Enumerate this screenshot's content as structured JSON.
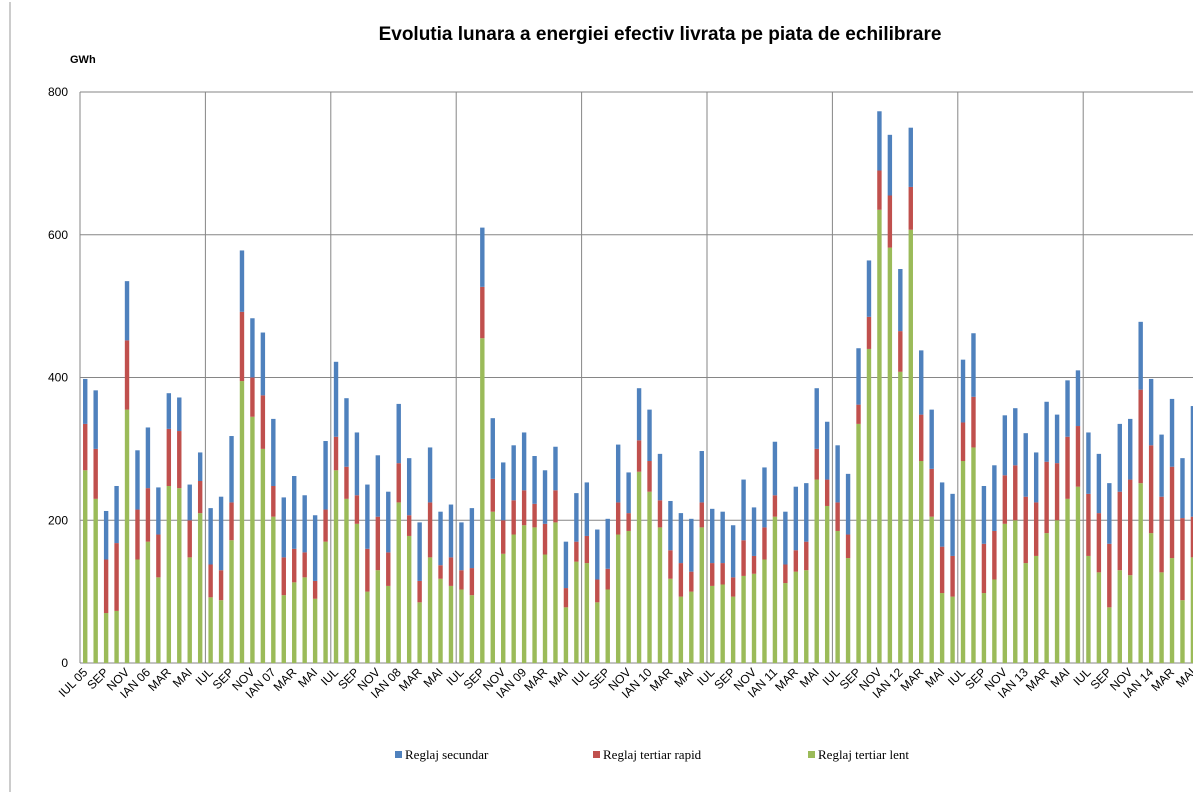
{
  "chart_data": {
    "type": "stacked-bar",
    "title": "Evolutia lunara a energiei efectiv livrata pe piata de echilibrare",
    "y_label": "GWh",
    "categories": [
      "IUL 05",
      null,
      "SEP",
      null,
      "NOV",
      null,
      "IAN 06",
      null,
      "MAR",
      null,
      "MAI",
      null,
      "IUL",
      null,
      "SEP",
      null,
      "NOV",
      null,
      "IAN 07",
      null,
      "MAR",
      null,
      "MAI",
      null,
      "IUL",
      null,
      "SEP",
      null,
      "NOV",
      null,
      "IAN 08",
      null,
      "MAR",
      null,
      "MAI",
      null,
      "IUL",
      null,
      "SEP",
      null,
      "NOV",
      null,
      "IAN 09",
      null,
      "MAR",
      null,
      "MAI",
      null,
      "IUL",
      null,
      "SEP",
      null,
      "NOV",
      null,
      "IAN 10",
      null,
      "MAR",
      null,
      "MAI",
      null,
      "IUL",
      null,
      "SEP",
      null,
      "NOV",
      null,
      "IAN 11",
      null,
      "MAR",
      null,
      "MAI",
      null,
      "IUL",
      null,
      "SEP",
      null,
      "NOV",
      null,
      "IAN 12",
      null,
      "MAR",
      null,
      "MAI",
      null,
      "IUL",
      null,
      "SEP",
      null,
      "NOV",
      null,
      "IAN 13",
      null,
      "MAR",
      null,
      "MAI",
      null,
      "IUL",
      null,
      "SEP",
      null,
      "NOV",
      null,
      "IAN 14",
      null,
      "MAR",
      null,
      "MAI"
    ],
    "series": [
      {
        "name": "Reglaj secundar",
        "color": "#4f81bd",
        "values": [
          63,
          82,
          68,
          80,
          83,
          83,
          85,
          66,
          50,
          47,
          50,
          40,
          79,
          103,
          93,
          86,
          83,
          88,
          94,
          84,
          102,
          80,
          92,
          96,
          105,
          96,
          88,
          90,
          86,
          85,
          83,
          80,
          82,
          77,
          75,
          74,
          67,
          84,
          83,
          85,
          81,
          77,
          81,
          67,
          75,
          61,
          65,
          68,
          75,
          70,
          70,
          81,
          57,
          73,
          72,
          65,
          69,
          70,
          74,
          72,
          76,
          72,
          73,
          85,
          68,
          84,
          75,
          74,
          89,
          82,
          85,
          81,
          80,
          85,
          79,
          79,
          83,
          85,
          87,
          83,
          90,
          83,
          90,
          87,
          88,
          89,
          81,
          92,
          84,
          80,
          89,
          70,
          84,
          68,
          79,
          78,
          86,
          83,
          85,
          95,
          85,
          95,
          93,
          87,
          95,
          84,
          155
        ]
      },
      {
        "name": "Reglaj tertiar rapid",
        "color": "#c0504d",
        "values": [
          65,
          70,
          75,
          95,
          97,
          70,
          75,
          60,
          80,
          80,
          52,
          45,
          46,
          42,
          53,
          97,
          55,
          75,
          43,
          53,
          47,
          35,
          25,
          45,
          47,
          45,
          40,
          60,
          75,
          47,
          55,
          29,
          30,
          77,
          19,
          40,
          27,
          38,
          72,
          46,
          47,
          48,
          49,
          33,
          43,
          45,
          27,
          28,
          38,
          32,
          29,
          45,
          25,
          44,
          43,
          38,
          40,
          47,
          28,
          35,
          32,
          30,
          27,
          50,
          25,
          45,
          30,
          26,
          30,
          40,
          43,
          37,
          40,
          33,
          27,
          45,
          55,
          73,
          57,
          60,
          65,
          67,
          65,
          57,
          54,
          71,
          69,
          68,
          68,
          77,
          93,
          75,
          100,
          80,
          87,
          85,
          87,
          83,
          89,
          110,
          134,
          131,
          123,
          106,
          128,
          115,
          57
        ]
      },
      {
        "name": "Reglaj tertiar lent",
        "color": "#9bbb59",
        "values": [
          270,
          230,
          70,
          73,
          355,
          145,
          170,
          120,
          248,
          245,
          148,
          210,
          92,
          88,
          172,
          395,
          345,
          300,
          205,
          95,
          113,
          120,
          90,
          170,
          270,
          230,
          195,
          100,
          130,
          108,
          225,
          178,
          85,
          148,
          118,
          108,
          103,
          95,
          455,
          212,
          153,
          180,
          193,
          190,
          152,
          197,
          78,
          142,
          140,
          85,
          103,
          180,
          185,
          268,
          240,
          190,
          118,
          93,
          100,
          190,
          108,
          110,
          93,
          122,
          125,
          145,
          205,
          112,
          128,
          130,
          257,
          220,
          185,
          147,
          335,
          440,
          635,
          582,
          408,
          607,
          283,
          205,
          98,
          93,
          283,
          302,
          98,
          117,
          195,
          200,
          140,
          150,
          182,
          200,
          230,
          247,
          150,
          127,
          78,
          130,
          123,
          252,
          182,
          127,
          147,
          88,
          148
        ]
      }
    ],
    "ylim": [
      0,
      800
    ],
    "yticks": [
      0,
      200,
      400,
      600,
      800
    ],
    "grid": true
  }
}
